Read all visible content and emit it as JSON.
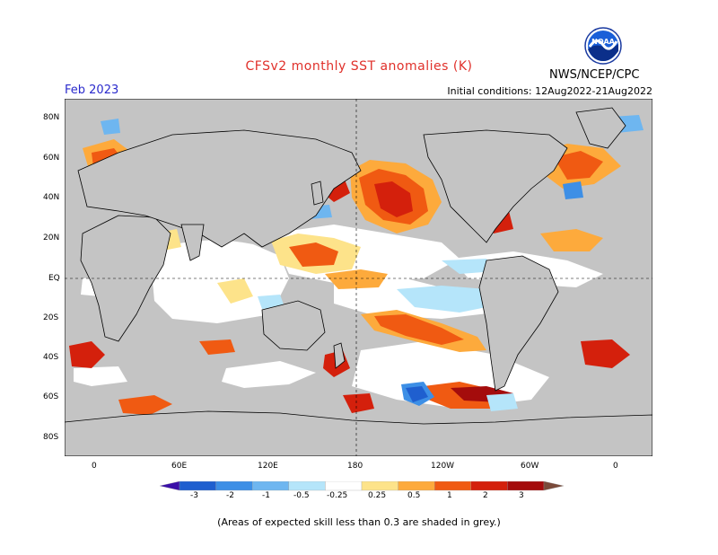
{
  "title": "CFSv2 monthly SST anomalies (K)",
  "valid_month": "Feb 2023",
  "initial_conditions": "Initial conditions: 12Aug2022-21Aug2022",
  "agency": "NWS/NCEP/CPC",
  "logo_text": "NOAA",
  "footnote": "(Areas of expected skill less than 0.3 are shaded in grey.)",
  "lat_labels": [
    "80N",
    "60N",
    "40N",
    "20N",
    "EQ",
    "20S",
    "40S",
    "60S",
    "80S"
  ],
  "lon_labels": [
    "0",
    "60E",
    "120E",
    "180",
    "120W",
    "60W",
    "0"
  ],
  "colorbar": {
    "labels": [
      "-3",
      "-2",
      "-1",
      "-0.5",
      "-0.25",
      "0.25",
      "0.5",
      "1",
      "2",
      "3"
    ],
    "colors": [
      "#3a0fa8",
      "#1f5fcf",
      "#3d8fe6",
      "#6eb6f0",
      "#b5e5fa",
      "#ffffff",
      "#fde38a",
      "#fdaa3c",
      "#f05a12",
      "#d4200c",
      "#a40c0c",
      "#7a4a3a"
    ]
  },
  "colors": {
    "skill_grey": "#c4c4c4",
    "ocean_white": "#ffffff",
    "coast": "#000000",
    "title_red": "#e0302a",
    "month_blue": "#2a2acc"
  }
}
